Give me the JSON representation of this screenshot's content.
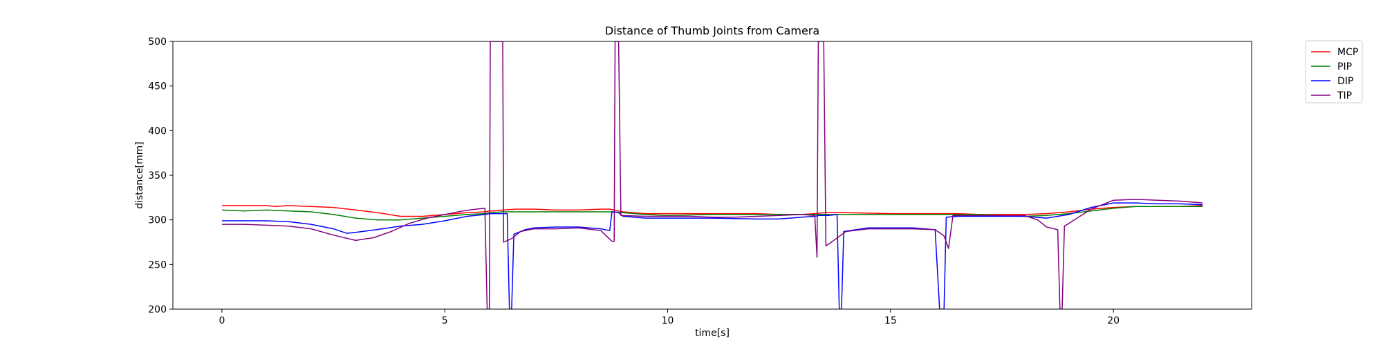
{
  "chart_data": {
    "type": "line",
    "title": "Distance of Thumb Joints from Camera",
    "xlabel": "time[s]",
    "ylabel": "distance[mm]",
    "xlim": [
      -1.1,
      23.1
    ],
    "ylim": [
      200,
      500
    ],
    "xticks": [
      0,
      5,
      10,
      15,
      20
    ],
    "yticks": [
      200,
      250,
      300,
      350,
      400,
      450,
      500
    ],
    "grid": false,
    "legend_position": "outside-top-right",
    "series": [
      {
        "name": "MCP",
        "color": "#ff0000",
        "points": [
          [
            0,
            316
          ],
          [
            0.5,
            316
          ],
          [
            1,
            316
          ],
          [
            1.2,
            315
          ],
          [
            1.5,
            316
          ],
          [
            2,
            315
          ],
          [
            2.5,
            314
          ],
          [
            3,
            311
          ],
          [
            3.5,
            308
          ],
          [
            4,
            304
          ],
          [
            4.5,
            304
          ],
          [
            5,
            306
          ],
          [
            5.5,
            308
          ],
          [
            5.9,
            309
          ],
          [
            6.0,
            310
          ],
          [
            6.1,
            310
          ],
          [
            6.3,
            311
          ],
          [
            6.6,
            312
          ],
          [
            7,
            312
          ],
          [
            7.5,
            311
          ],
          [
            8,
            311
          ],
          [
            8.5,
            312
          ],
          [
            8.7,
            312
          ],
          [
            8.8,
            311
          ],
          [
            9,
            309
          ],
          [
            9.5,
            307
          ],
          [
            10,
            307
          ],
          [
            11,
            307
          ],
          [
            12,
            307
          ],
          [
            12.5,
            306
          ],
          [
            13,
            306
          ],
          [
            13.3,
            307
          ],
          [
            13.5,
            308
          ],
          [
            14,
            308
          ],
          [
            15,
            307
          ],
          [
            16,
            307
          ],
          [
            16.5,
            307
          ],
          [
            17,
            306
          ],
          [
            17.5,
            306
          ],
          [
            18,
            306
          ],
          [
            18.5,
            307
          ],
          [
            19,
            309
          ],
          [
            19.5,
            312
          ],
          [
            20,
            314
          ],
          [
            20.5,
            315
          ],
          [
            21,
            315
          ],
          [
            21.5,
            315
          ],
          [
            22,
            316
          ]
        ]
      },
      {
        "name": "PIP",
        "color": "#008000",
        "points": [
          [
            0,
            311
          ],
          [
            0.5,
            310
          ],
          [
            1,
            311
          ],
          [
            1.5,
            310
          ],
          [
            2,
            309
          ],
          [
            2.5,
            306
          ],
          [
            3,
            302
          ],
          [
            3.5,
            300
          ],
          [
            4,
            300
          ],
          [
            4.5,
            302
          ],
          [
            5,
            304
          ],
          [
            5.5,
            306
          ],
          [
            5.9,
            307
          ],
          [
            6.0,
            308
          ],
          [
            6.3,
            309
          ],
          [
            6.6,
            309
          ],
          [
            7,
            309
          ],
          [
            7.5,
            309
          ],
          [
            8,
            309
          ],
          [
            8.5,
            309
          ],
          [
            8.8,
            309
          ],
          [
            9,
            308
          ],
          [
            9.5,
            306
          ],
          [
            10,
            305
          ],
          [
            11,
            306
          ],
          [
            12,
            306
          ],
          [
            13,
            306
          ],
          [
            13.4,
            306
          ],
          [
            13.6,
            306
          ],
          [
            14,
            306
          ],
          [
            15,
            306
          ],
          [
            16,
            306
          ],
          [
            17,
            306
          ],
          [
            18,
            304
          ],
          [
            18.5,
            305
          ],
          [
            19,
            307
          ],
          [
            19.5,
            310
          ],
          [
            20,
            313
          ],
          [
            20.5,
            315
          ],
          [
            21,
            315
          ],
          [
            21.5,
            315
          ],
          [
            22,
            315
          ]
        ]
      },
      {
        "name": "DIP",
        "color": "#0000ff",
        "points": [
          [
            0,
            299
          ],
          [
            0.5,
            299
          ],
          [
            1,
            299
          ],
          [
            1.5,
            298
          ],
          [
            2,
            295
          ],
          [
            2.5,
            290
          ],
          [
            2.8,
            285
          ],
          [
            3,
            286
          ],
          [
            3.3,
            288
          ],
          [
            3.6,
            290
          ],
          [
            4,
            293
          ],
          [
            4.5,
            295
          ],
          [
            5,
            299
          ],
          [
            5.5,
            304
          ],
          [
            5.9,
            306
          ],
          [
            6.0,
            307
          ],
          [
            6.2,
            307
          ],
          [
            6.4,
            307
          ],
          [
            6.45,
            200
          ],
          [
            6.5,
            200
          ],
          [
            6.55,
            284
          ],
          [
            6.8,
            289
          ],
          [
            7,
            291
          ],
          [
            7.5,
            292
          ],
          [
            8,
            292
          ],
          [
            8.5,
            290
          ],
          [
            8.7,
            288
          ],
          [
            8.75,
            309
          ],
          [
            8.9,
            308
          ],
          [
            9,
            304
          ],
          [
            9.5,
            302
          ],
          [
            10,
            302
          ],
          [
            11,
            302
          ],
          [
            12,
            301
          ],
          [
            12.5,
            301
          ],
          [
            13,
            303
          ],
          [
            13.3,
            304
          ],
          [
            13.4,
            305
          ],
          [
            13.6,
            305
          ],
          [
            13.8,
            306
          ],
          [
            13.85,
            200
          ],
          [
            13.9,
            200
          ],
          [
            13.95,
            287
          ],
          [
            14.5,
            291
          ],
          [
            15,
            291
          ],
          [
            15.5,
            291
          ],
          [
            16,
            289
          ],
          [
            16.1,
            200
          ],
          [
            16.2,
            200
          ],
          [
            16.25,
            303
          ],
          [
            16.5,
            304
          ],
          [
            17,
            304
          ],
          [
            17.5,
            304
          ],
          [
            18,
            304
          ],
          [
            18.5,
            302
          ],
          [
            19,
            306
          ],
          [
            19.5,
            314
          ],
          [
            20,
            319
          ],
          [
            20.5,
            319
          ],
          [
            21,
            318
          ],
          [
            21.5,
            318
          ],
          [
            22,
            317
          ]
        ]
      },
      {
        "name": "TIP",
        "color": "#800080",
        "points": [
          [
            0,
            295
          ],
          [
            0.5,
            295
          ],
          [
            1,
            294
          ],
          [
            1.5,
            293
          ],
          [
            2,
            290
          ],
          [
            2.5,
            283
          ],
          [
            3,
            277
          ],
          [
            3.4,
            280
          ],
          [
            3.8,
            287
          ],
          [
            4.2,
            296
          ],
          [
            4.6,
            302
          ],
          [
            5,
            306
          ],
          [
            5.4,
            310
          ],
          [
            5.7,
            312
          ],
          [
            5.9,
            313
          ],
          [
            5.95,
            200
          ],
          [
            6.0,
            200
          ],
          [
            6.02,
            500
          ],
          [
            6.3,
            500
          ],
          [
            6.32,
            275
          ],
          [
            6.5,
            279
          ],
          [
            6.7,
            287
          ],
          [
            7,
            290
          ],
          [
            7.5,
            290
          ],
          [
            8,
            291
          ],
          [
            8.5,
            288
          ],
          [
            8.75,
            276
          ],
          [
            8.8,
            276
          ],
          [
            8.82,
            500
          ],
          [
            8.9,
            500
          ],
          [
            8.95,
            305
          ],
          [
            9.5,
            304
          ],
          [
            10,
            304
          ],
          [
            10.5,
            304
          ],
          [
            11,
            303
          ],
          [
            11.5,
            303
          ],
          [
            12,
            304
          ],
          [
            12.5,
            305
          ],
          [
            13,
            306
          ],
          [
            13.3,
            305
          ],
          [
            13.35,
            258
          ],
          [
            13.38,
            500
          ],
          [
            13.5,
            500
          ],
          [
            13.55,
            271
          ],
          [
            13.7,
            276
          ],
          [
            14,
            287
          ],
          [
            14.5,
            290
          ],
          [
            15,
            290
          ],
          [
            15.5,
            290
          ],
          [
            16,
            289
          ],
          [
            16.2,
            282
          ],
          [
            16.3,
            268
          ],
          [
            16.4,
            305
          ],
          [
            16.6,
            305
          ],
          [
            17,
            305
          ],
          [
            17.5,
            305
          ],
          [
            18,
            305
          ],
          [
            18.3,
            300
          ],
          [
            18.5,
            292
          ],
          [
            18.75,
            289
          ],
          [
            18.8,
            200
          ],
          [
            18.85,
            200
          ],
          [
            18.9,
            293
          ],
          [
            19,
            296
          ],
          [
            19.5,
            312
          ],
          [
            20,
            322
          ],
          [
            20.5,
            323
          ],
          [
            21,
            322
          ],
          [
            21.5,
            321
          ],
          [
            22,
            319
          ]
        ]
      }
    ]
  }
}
